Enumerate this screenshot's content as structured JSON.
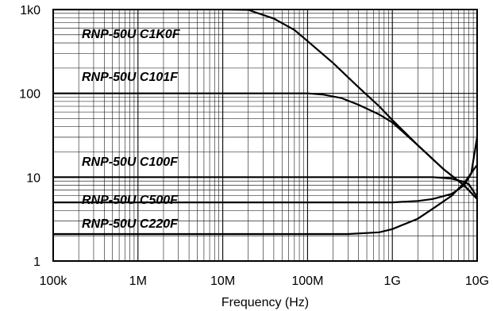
{
  "chart_data": {
    "type": "line",
    "title": "",
    "xlabel": "Frequency (Hz)",
    "ylabel": "",
    "x_scale": "log",
    "y_scale": "log",
    "xlim": [
      100000,
      10000000000
    ],
    "ylim": [
      1,
      1000
    ],
    "grid": true,
    "x_ticks": [
      {
        "value": 100000,
        "label": "100k"
      },
      {
        "value": 1000000,
        "label": "1M"
      },
      {
        "value": 10000000,
        "label": "10M"
      },
      {
        "value": 100000000,
        "label": "100M"
      },
      {
        "value": 1000000000,
        "label": "1G"
      },
      {
        "value": 10000000000,
        "label": "10G"
      }
    ],
    "y_ticks": [
      {
        "value": 1,
        "label": "1"
      },
      {
        "value": 10,
        "label": "10"
      },
      {
        "value": 100,
        "label": "100"
      },
      {
        "value": 1000,
        "label": "1k0"
      }
    ],
    "series": [
      {
        "name": "RNP-50U C1K0F",
        "label_at": [
          100000,
          520
        ],
        "x": [
          100000,
          10000000,
          20000000,
          40000000,
          70000000,
          100000000,
          200000000,
          400000000,
          700000000,
          1000000000,
          2000000000,
          4000000000,
          7000000000,
          10000000000
        ],
        "y": [
          1000,
          1000,
          990,
          780,
          570,
          420,
          230,
          118,
          70,
          48,
          24,
          12.5,
          8,
          5.5
        ]
      },
      {
        "name": "RNP-50U C101F",
        "label_at": [
          100000,
          160
        ],
        "x": [
          100000,
          100000000,
          150000000,
          250000000,
          400000000,
          700000000,
          1000000000,
          2000000000,
          4000000000,
          7000000000,
          10000000000
        ],
        "y": [
          100,
          100,
          97,
          88,
          73,
          56,
          45,
          24,
          12.5,
          8,
          5.5
        ]
      },
      {
        "name": "RNP-50U C100F",
        "label_at": [
          100000,
          15.5
        ],
        "x": [
          100000,
          3000000000,
          5000000000,
          7000000000,
          8000000000,
          10000000000
        ],
        "y": [
          10,
          10,
          9.6,
          8.8,
          8.2,
          5.8
        ]
      },
      {
        "name": "RNP-50U C500F",
        "label_at": [
          100000,
          5.5
        ],
        "x": [
          100000,
          1000000000,
          2000000000,
          3000000000,
          5000000000,
          7000000000,
          8500000000,
          10000000000
        ],
        "y": [
          5,
          5,
          5.2,
          5.5,
          6.3,
          8,
          11,
          30
        ]
      },
      {
        "name": "RNP-50U C220F",
        "label_at": [
          100000,
          2.85
        ],
        "x": [
          100000,
          300000000,
          700000000,
          1000000000,
          2000000000,
          3000000000,
          5000000000,
          7000000000,
          10000000000
        ],
        "y": [
          2.1,
          2.1,
          2.2,
          2.4,
          3.2,
          4.2,
          6,
          8.5,
          14
        ]
      }
    ]
  }
}
